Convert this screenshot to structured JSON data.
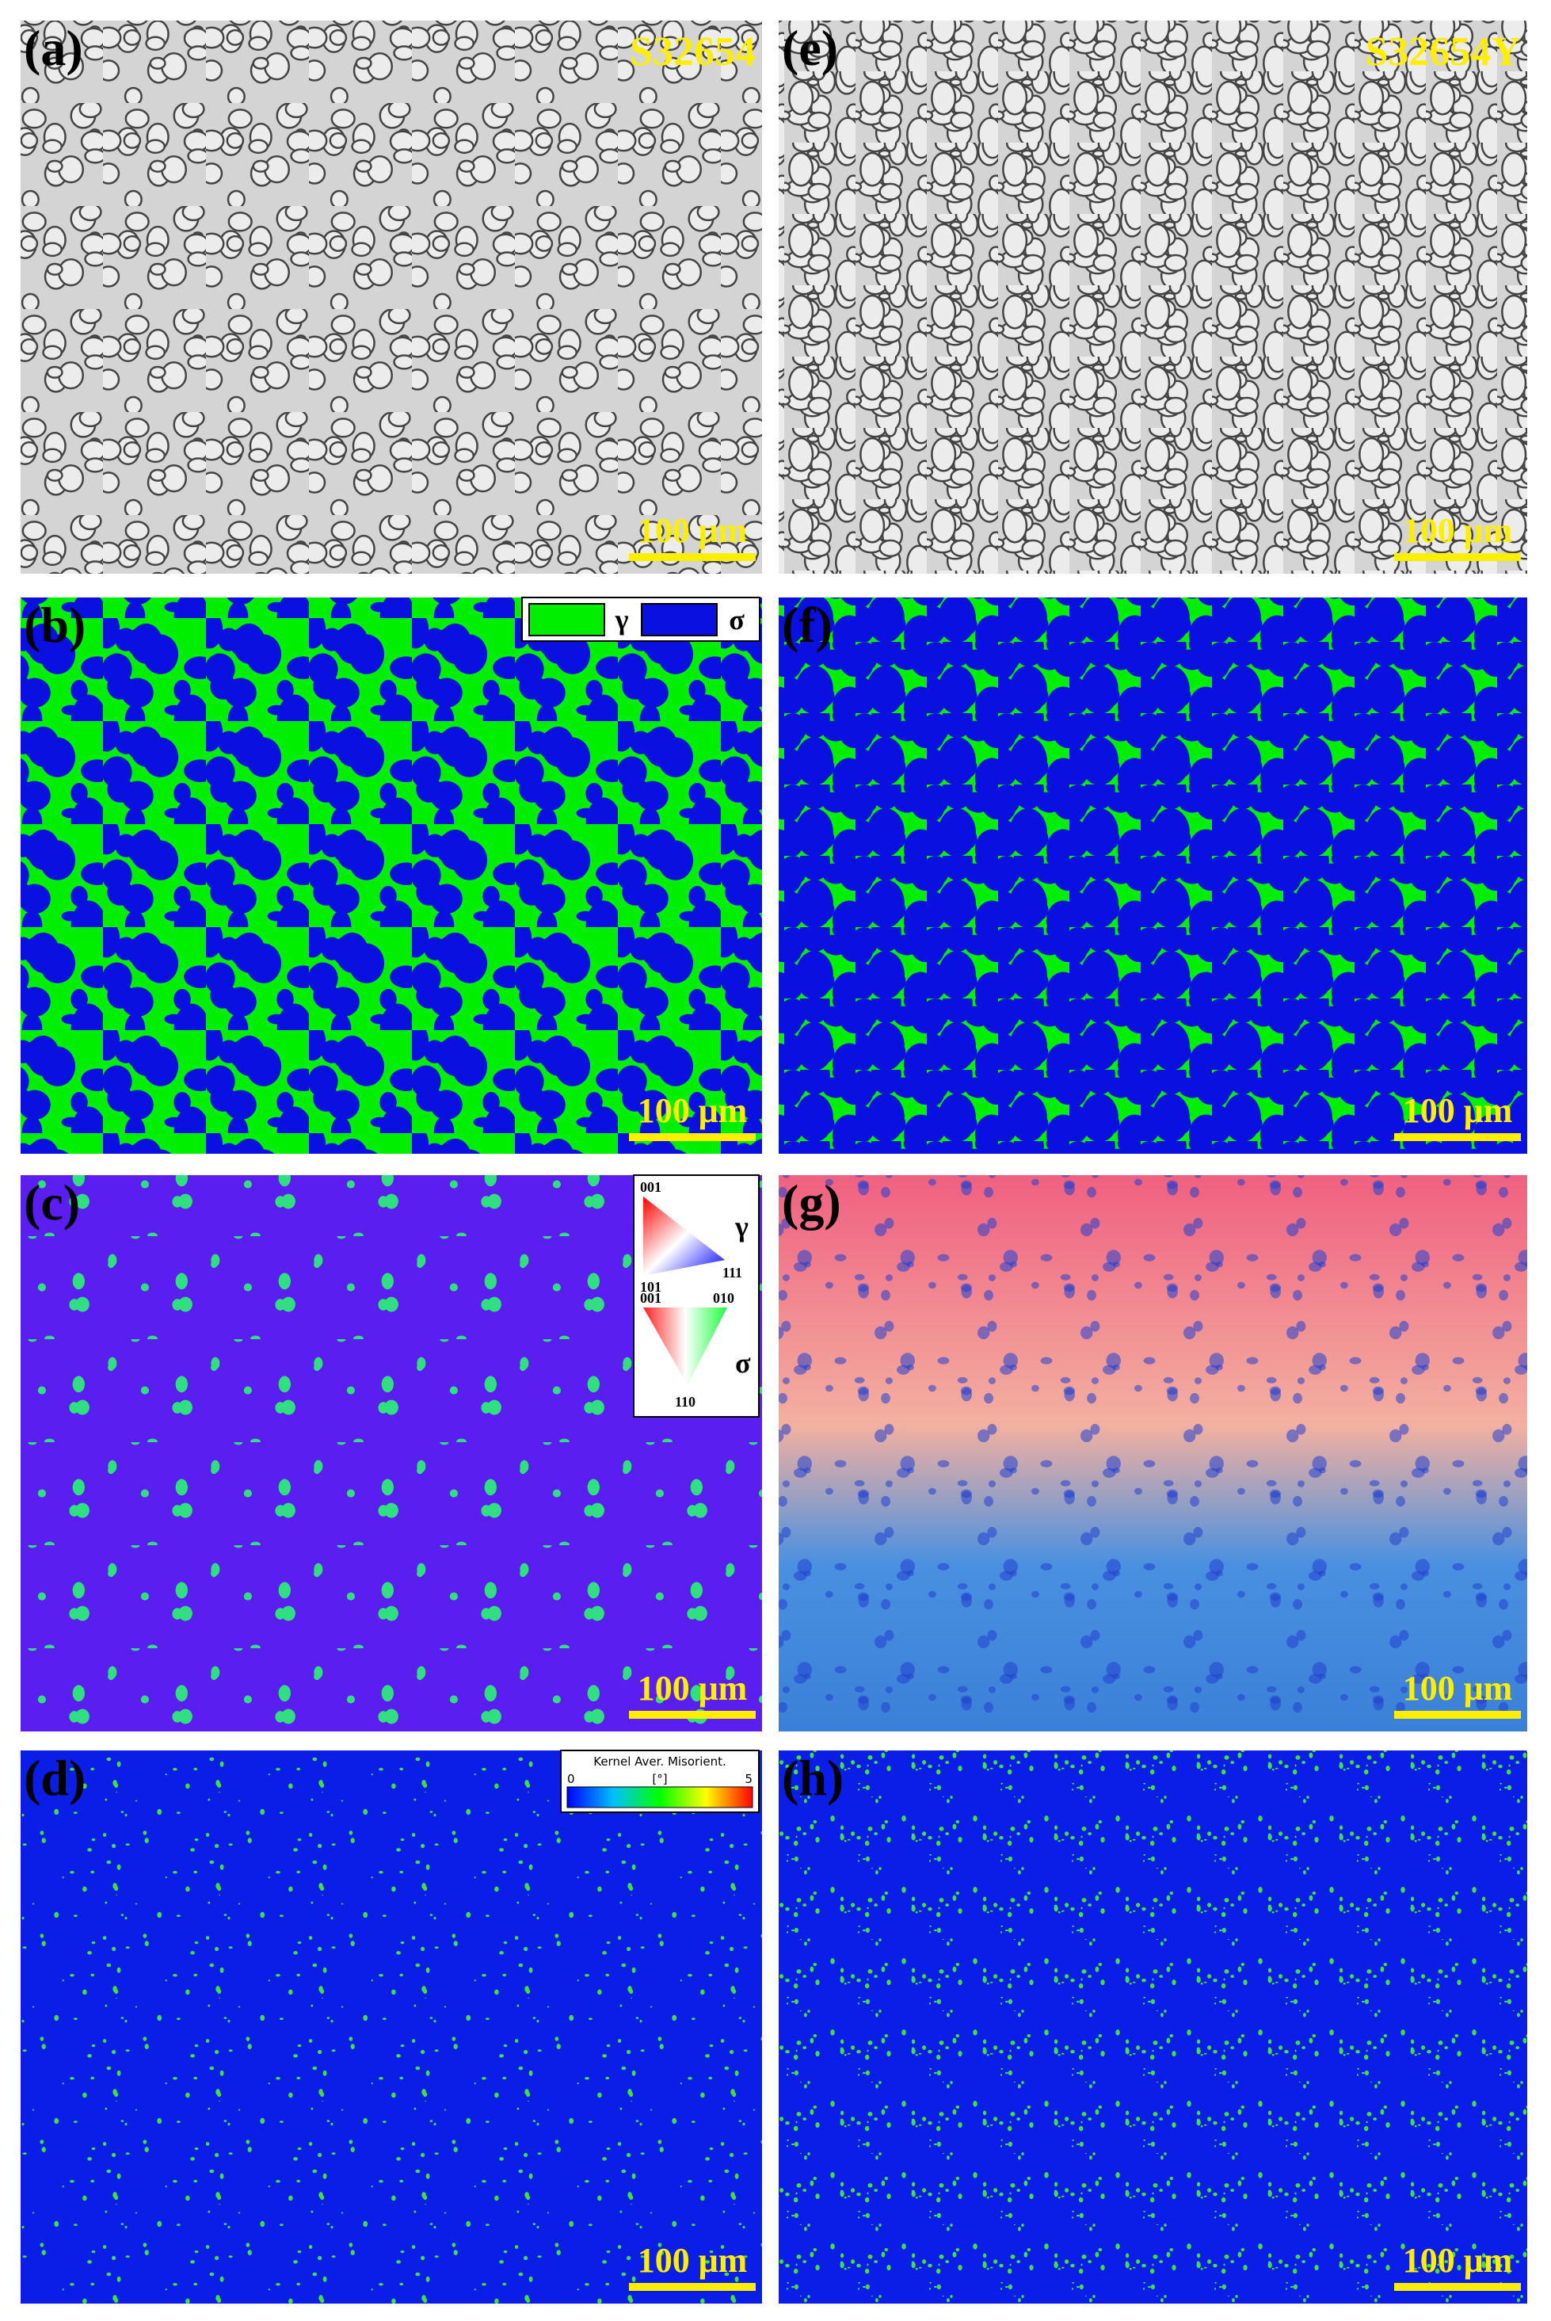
{
  "panels": [
    {
      "label": "(a)",
      "sample": "S32654",
      "scale_bar": "100 μm"
    },
    {
      "label": "(b)",
      "scale_bar": "100 μm"
    },
    {
      "label": "(c)",
      "scale_bar": "100 μm"
    },
    {
      "label": "(d)",
      "scale_bar": "100 μm"
    },
    {
      "label": "(e)",
      "sample": "S32654Y",
      "scale_bar": "100 μm"
    },
    {
      "label": "(f)",
      "scale_bar": "100 μm"
    },
    {
      "label": "(g)",
      "scale_bar": "100 μm"
    },
    {
      "label": "(h)",
      "scale_bar": "100 μm"
    }
  ],
  "phase_legend": {
    "items": [
      "γ",
      "σ"
    ]
  },
  "ipf_legend": {
    "gamma": {
      "symbol": "γ",
      "corners": [
        "001",
        "101",
        "111"
      ]
    },
    "sigma": {
      "symbol": "σ",
      "corners": [
        "001",
        "010",
        "110"
      ]
    }
  },
  "kam_legend": {
    "title": "Kernel Aver. Misorient.",
    "min": "0",
    "unit": "[°]",
    "max": "5"
  }
}
